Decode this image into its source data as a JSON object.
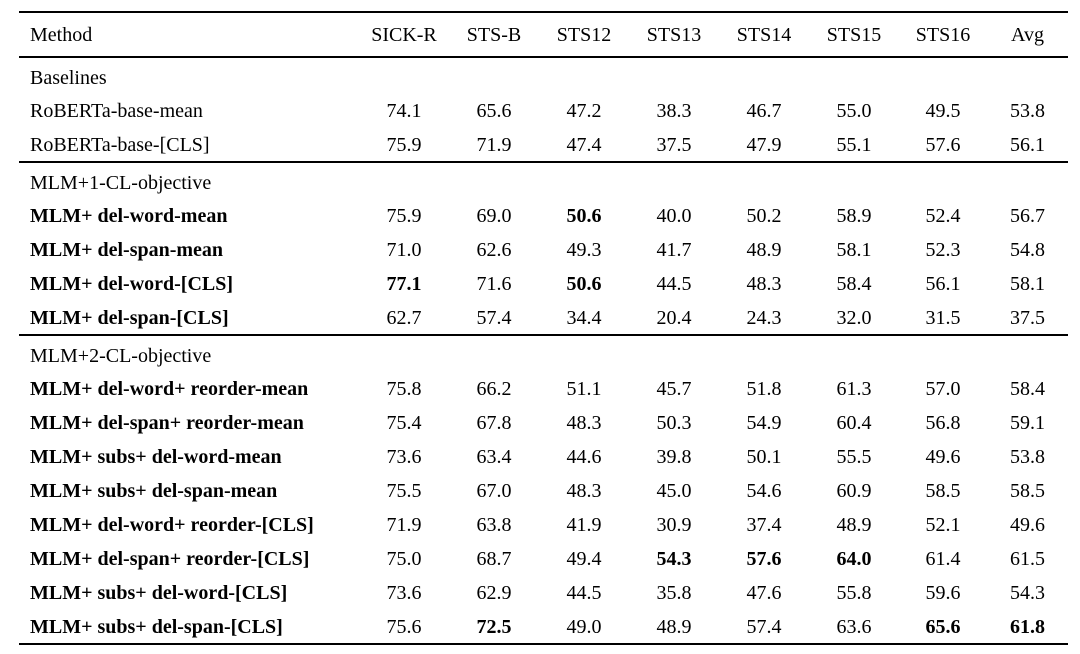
{
  "page": {
    "background": "#ffffff",
    "text_color": "#000000",
    "rule_color": "#000000"
  },
  "table": {
    "columns": [
      "Method",
      "SICK-R",
      "STS-B",
      "STS12",
      "STS13",
      "STS14",
      "STS15",
      "STS16",
      "Avg"
    ],
    "sections": [
      {
        "label": "Baselines",
        "rows": [
          {
            "method": "RoBERTa-base-mean",
            "bold_method": false,
            "values": [
              "74.1",
              "65.6",
              "47.2",
              "38.3",
              "46.7",
              "55.0",
              "49.5",
              "53.8"
            ],
            "bold_values": []
          },
          {
            "method": "RoBERTa-base-[CLS]",
            "bold_method": false,
            "values": [
              "75.9",
              "71.9",
              "47.4",
              "37.5",
              "47.9",
              "55.1",
              "57.6",
              "56.1"
            ],
            "bold_values": []
          }
        ]
      },
      {
        "label": "MLM+1-CL-objective",
        "rows": [
          {
            "method": "MLM+ del-word-mean",
            "bold_method": true,
            "values": [
              "75.9",
              "69.0",
              "50.6",
              "40.0",
              "50.2",
              "58.9",
              "52.4",
              "56.7"
            ],
            "bold_values": [
              2
            ]
          },
          {
            "method": "MLM+ del-span-mean",
            "bold_method": true,
            "values": [
              "71.0",
              "62.6",
              "49.3",
              "41.7",
              "48.9",
              "58.1",
              "52.3",
              "54.8"
            ],
            "bold_values": []
          },
          {
            "method": "MLM+ del-word-[CLS]",
            "bold_method": true,
            "values": [
              "77.1",
              "71.6",
              "50.6",
              "44.5",
              "48.3",
              "58.4",
              "56.1",
              "58.1"
            ],
            "bold_values": [
              0,
              2
            ]
          },
          {
            "method": "MLM+ del-span-[CLS]",
            "bold_method": true,
            "values": [
              "62.7",
              "57.4",
              "34.4",
              "20.4",
              "24.3",
              "32.0",
              "31.5",
              "37.5"
            ],
            "bold_values": []
          }
        ]
      },
      {
        "label": "MLM+2-CL-objective",
        "rows": [
          {
            "method": "MLM+ del-word+ reorder-mean",
            "bold_method": true,
            "values": [
              "75.8",
              "66.2",
              "51.1",
              "45.7",
              "51.8",
              "61.3",
              "57.0",
              "58.4"
            ],
            "bold_values": []
          },
          {
            "method": "MLM+ del-span+ reorder-mean",
            "bold_method": true,
            "values": [
              "75.4",
              "67.8",
              "48.3",
              "50.3",
              "54.9",
              "60.4",
              "56.8",
              "59.1"
            ],
            "bold_values": []
          },
          {
            "method": "MLM+ subs+ del-word-mean",
            "bold_method": true,
            "values": [
              "73.6",
              "63.4",
              "44.6",
              "39.8",
              "50.1",
              "55.5",
              "49.6",
              "53.8"
            ],
            "bold_values": []
          },
          {
            "method": "MLM+ subs+ del-span-mean",
            "bold_method": true,
            "values": [
              "75.5",
              "67.0",
              "48.3",
              "45.0",
              "54.6",
              "60.9",
              "58.5",
              "58.5"
            ],
            "bold_values": []
          },
          {
            "method": "MLM+ del-word+ reorder-[CLS]",
            "bold_method": true,
            "values": [
              "71.9",
              "63.8",
              "41.9",
              "30.9",
              "37.4",
              "48.9",
              "52.1",
              "49.6"
            ],
            "bold_values": []
          },
          {
            "method": "MLM+ del-span+ reorder-[CLS]",
            "bold_method": true,
            "values": [
              "75.0",
              "68.7",
              "49.4",
              "54.3",
              "57.6",
              "64.0",
              "61.4",
              "61.5"
            ],
            "bold_values": [
              3,
              4,
              5
            ]
          },
          {
            "method": "MLM+ subs+ del-word-[CLS]",
            "bold_method": true,
            "values": [
              "73.6",
              "62.9",
              "44.5",
              "35.8",
              "47.6",
              "55.8",
              "59.6",
              "54.3"
            ],
            "bold_values": []
          },
          {
            "method": "MLM+ subs+ del-span-[CLS]",
            "bold_method": true,
            "values": [
              "75.6",
              "72.5",
              "49.0",
              "48.9",
              "57.4",
              "63.6",
              "65.6",
              "61.8"
            ],
            "bold_values": [
              1,
              6,
              7
            ]
          }
        ]
      }
    ]
  }
}
